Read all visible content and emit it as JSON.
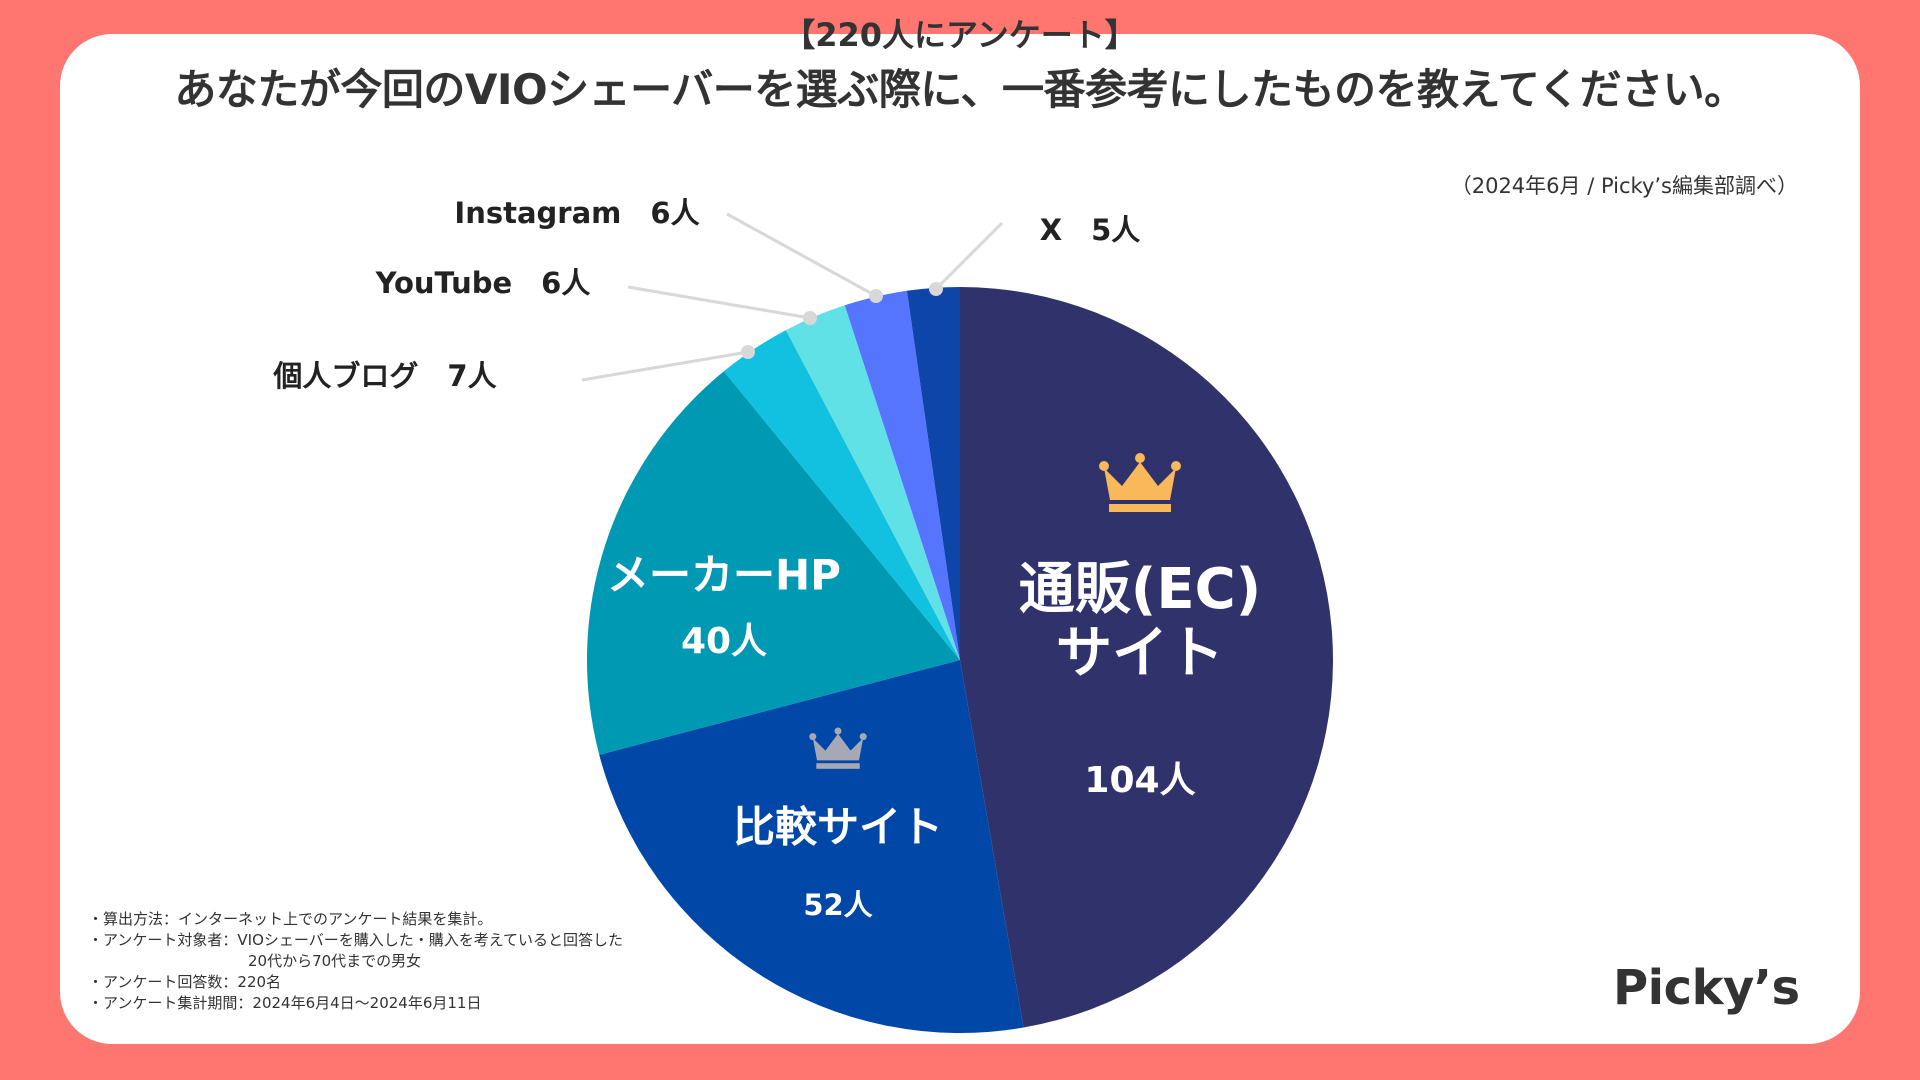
{
  "header": {
    "subtitle": "【220人にアンケート】",
    "title": "あなたが今回のVIOシェーバーを選ぶ際に、一番参考にしたものを教えてください。",
    "source": "（2024年6月 / Picky’s編集部調べ）"
  },
  "chart_data": {
    "type": "pie",
    "start_angle_deg": 0,
    "direction": "clockwise",
    "total": 220,
    "slices": [
      {
        "label_lines": [
          "通販(EC)",
          "サイト"
        ],
        "count_label": "104人",
        "value": 104,
        "color": "#2f326b",
        "label_color": "#ffffff",
        "rank_icon": "gold-crown-icon",
        "icon_color": "#f9b85a"
      },
      {
        "label_lines": [
          "比較サイト"
        ],
        "count_label": "52人",
        "value": 52,
        "color": "#0047a8",
        "label_color": "#ffffff",
        "rank_icon": "silver-crown-icon",
        "icon_color": "#a6a9b5"
      },
      {
        "label_lines": [
          "メーカーHP"
        ],
        "count_label": "40人",
        "value": 40,
        "color": "#0099b3",
        "label_color": "#ffffff"
      },
      {
        "label": "個人ブログ　7人",
        "value": 7,
        "color": "#12c1df",
        "label_color": "#222222",
        "callout": true
      },
      {
        "label": "YouTube　6人",
        "value": 6,
        "color": "#5fe1e6",
        "label_color": "#222222",
        "callout": true
      },
      {
        "label": "Instagram　6人",
        "value": 6,
        "color": "#5675ff",
        "label_color": "#222222",
        "callout": true
      },
      {
        "label": "X　5人",
        "value": 5,
        "color": "#0d45a9",
        "label_color": "#222222",
        "callout": true
      }
    ]
  },
  "notes": [
    "・算出方法：インターネット上でのアンケート結果を集計。",
    "・アンケート対象者：VIOシェーバーを購入した・購入を考えていると回答した",
    "20代から70代までの男女",
    "・アンケート回答数：220名",
    "・アンケート集計期間：2024年6月4日〜2024年6月11日"
  ],
  "logo": {
    "text": "Picky’s"
  },
  "colors": {
    "background": "#ff7670",
    "card": "#ffffff",
    "leader_line": "#d8d8d8",
    "leader_dot": "#d8d8d8"
  }
}
